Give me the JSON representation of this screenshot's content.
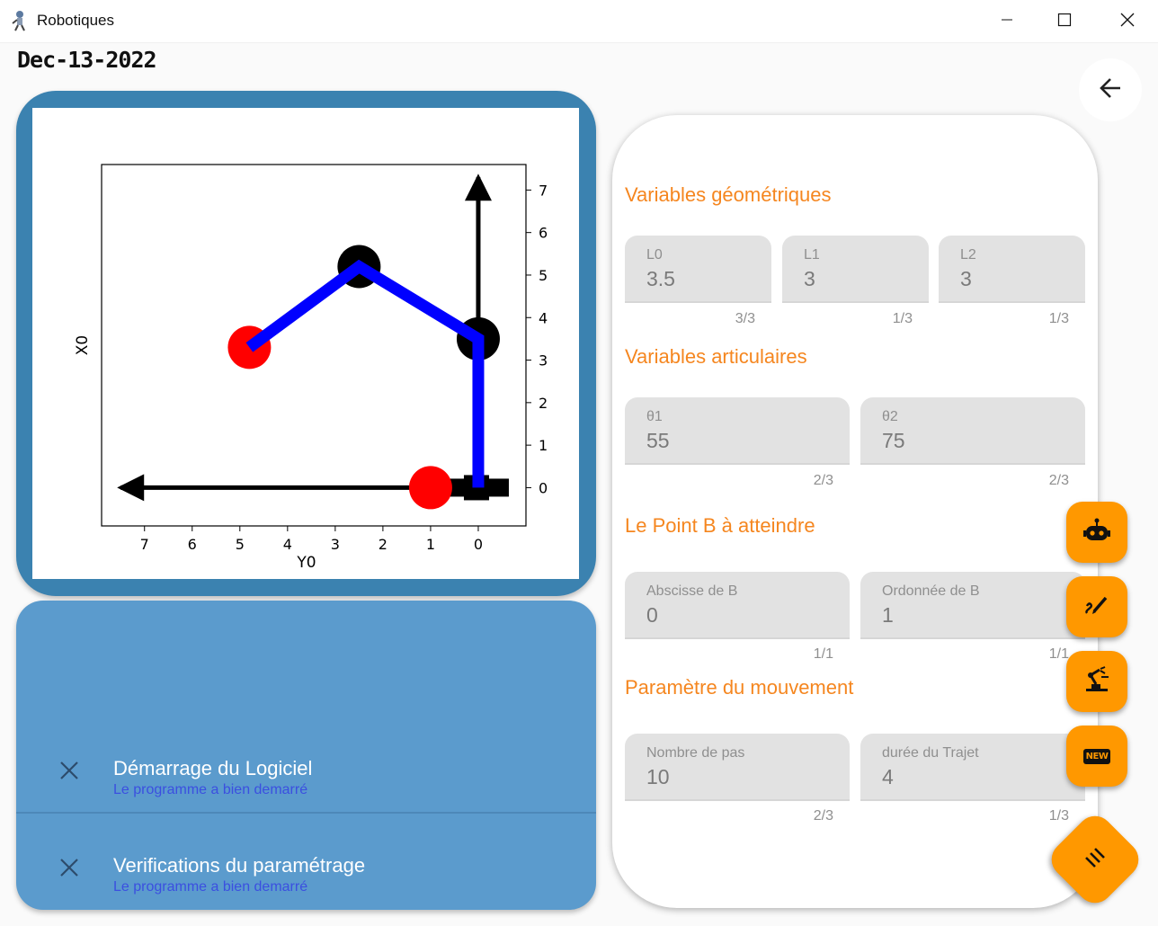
{
  "window": {
    "title": "Robotiques",
    "minimize_icon": "minimize-icon",
    "maximize_icon": "maximize-icon",
    "close_icon": "close-icon"
  },
  "date": "Dec-13-2022",
  "back_icon": "arrow-left-icon",
  "chart_data": {
    "type": "line",
    "xlabel": "Y0",
    "ylabel": "X0",
    "x_axis_inverted": true,
    "x_ticks": [
      "7",
      "6",
      "5",
      "4",
      "3",
      "2",
      "1",
      "0"
    ],
    "y_ticks": [
      "0",
      "1",
      "2",
      "3",
      "4",
      "5",
      "6",
      "7"
    ],
    "y_tick_side": "right",
    "xlim": [
      7.9,
      -1.0
    ],
    "ylim": [
      -0.9,
      7.6
    ],
    "grid": false,
    "series": [
      {
        "color": "#0000ff",
        "x": [
          0,
          0,
          2.5,
          4.8
        ],
        "y": [
          0,
          3.5,
          5.2,
          3.3
        ]
      }
    ],
    "joints": [
      {
        "x": 0,
        "y": 3.5,
        "color": "#000000"
      },
      {
        "x": 2.5,
        "y": 5.2,
        "color": "#000000"
      },
      {
        "x": 4.8,
        "y": 3.3,
        "color": "#ff0000"
      },
      {
        "x": 1.0,
        "y": 0,
        "color": "#ff0000"
      }
    ],
    "axis_arrows": [
      {
        "from": [
          0,
          0
        ],
        "to": [
          0,
          7.3
        ],
        "color": "#000000"
      },
      {
        "from": [
          0,
          0
        ],
        "to": [
          7.5,
          0
        ],
        "color": "#000000"
      }
    ],
    "base_marker": {
      "x": 0,
      "y": 0,
      "color": "#000000"
    }
  },
  "log": {
    "items": [
      {
        "title": "Démarrage du Logiciel",
        "subtitle": "Le programme a bien demarré",
        "icon": "close-icon"
      },
      {
        "title": "Verifications du paramétrage",
        "subtitle": "Le programme a bien demarré",
        "icon": "close-icon"
      }
    ]
  },
  "form": {
    "sections": [
      {
        "title": "Variables géométriques",
        "fields": [
          {
            "label": "L0",
            "value": "3.5",
            "counter": "3/3"
          },
          {
            "label": "L1",
            "value": "3",
            "counter": "1/3"
          },
          {
            "label": "L2",
            "value": "3",
            "counter": "1/3"
          }
        ]
      },
      {
        "title": "Variables articulaires",
        "fields": [
          {
            "label": "θ1",
            "value": "55",
            "counter": "2/3"
          },
          {
            "label": "θ2",
            "value": "75",
            "counter": "2/3"
          }
        ]
      },
      {
        "title": "Le Point B à atteindre",
        "fields": [
          {
            "label": "Abscisse de B",
            "value": "0",
            "counter": "1/1"
          },
          {
            "label": "Ordonnée de B",
            "value": "1",
            "counter": "1/1"
          }
        ]
      },
      {
        "title": "Paramètre du mouvement",
        "fields": [
          {
            "label": "Nombre de pas",
            "value": "10",
            "counter": "2/3"
          },
          {
            "label": "durée du Trajet",
            "value": "4",
            "counter": "1/3"
          }
        ]
      }
    ]
  },
  "speed_dial": {
    "items": [
      "robot-icon",
      "draw-icon",
      "robot-arm-icon",
      "new-box-icon"
    ],
    "new_badge": "NEW",
    "main_icon": "menu-icon"
  },
  "colors": {
    "accent": "#ff9800",
    "section_title": "#f5861f",
    "plot_card": "#3b82b0",
    "log_card": "#5b9bcd",
    "log_subtitle": "#3b4fe0"
  }
}
